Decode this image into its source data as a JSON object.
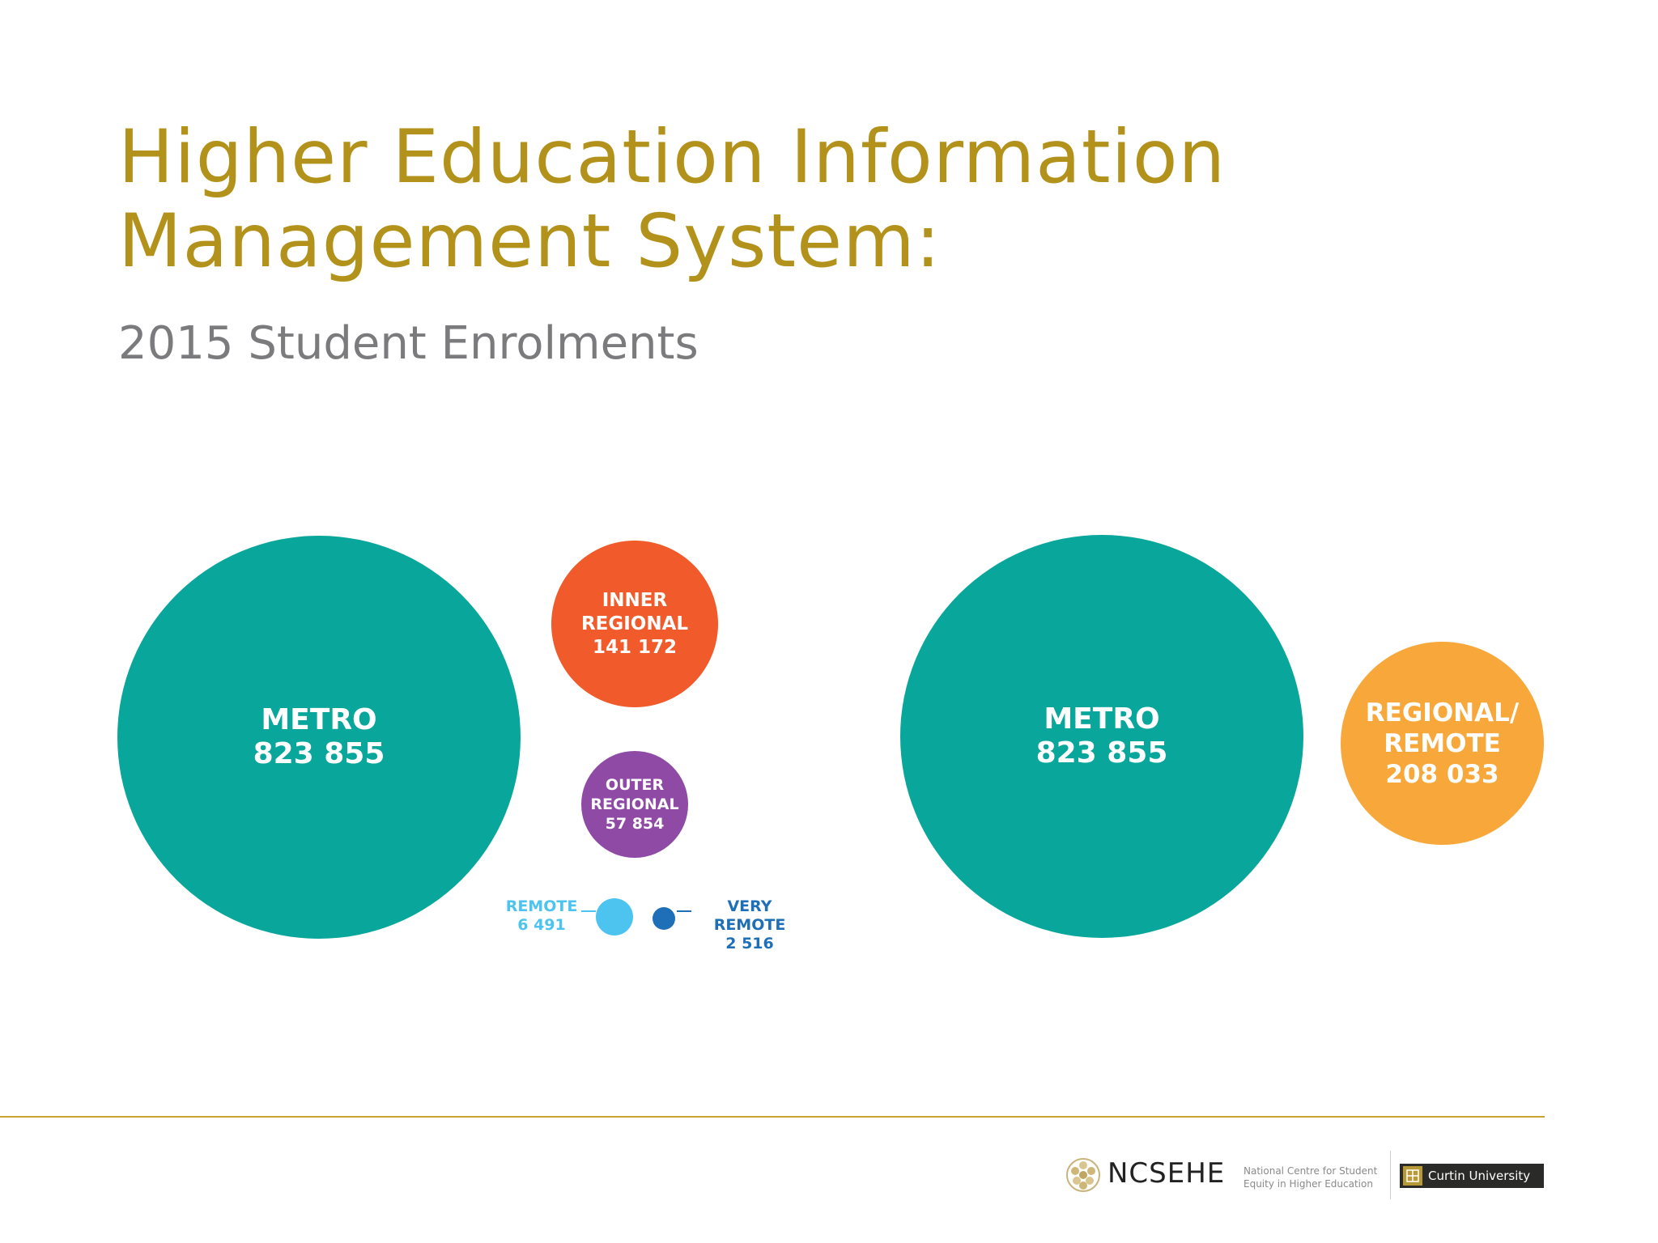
{
  "title": {
    "line1": "Higher Education Information",
    "line2": "Management System:"
  },
  "subtitle": "2015 Student Enrolments",
  "left_group": {
    "metro": {
      "label": "METRO",
      "value": "823 855",
      "color": "#09a69c"
    },
    "inner_regional": {
      "label_1": "INNER",
      "label_2": "REGIONAL",
      "value": "141 172",
      "color": "#f15a2a"
    },
    "outer_regional": {
      "label_1": "OUTER",
      "label_2": "REGIONAL",
      "value": "57 854",
      "color": "#8f4aa5"
    },
    "remote": {
      "label": "REMOTE",
      "value": "6 491",
      "color": "#4cc4ef"
    },
    "very_remote": {
      "label": "VERY REMOTE",
      "value": "2 516",
      "color": "#1e6fb8"
    }
  },
  "right_group": {
    "metro": {
      "label": "METRO",
      "value": "823 855",
      "color": "#09a69c"
    },
    "regional_remote": {
      "label_1": "REGIONAL/",
      "label_2": "REMOTE",
      "value": "208 033",
      "color": "#f8a83a"
    }
  },
  "footer": {
    "org_name": "NCSEHE",
    "org_desc_1": "National Centre for Student",
    "org_desc_2": "Equity in Higher Education",
    "university": "Curtin University",
    "rule_color": "#c9a230"
  }
}
